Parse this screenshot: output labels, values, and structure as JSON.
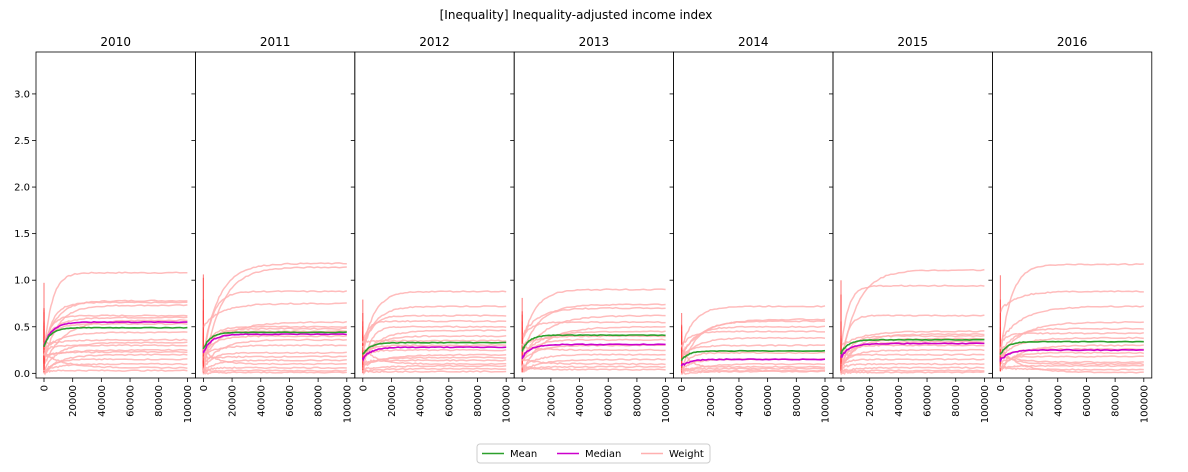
{
  "chart_data": {
    "type": "line",
    "title": "[Inequality] Inequality-adjusted income index",
    "panels": [
      {
        "name": "2010",
        "mean_final": 0.49,
        "median_final": 0.55,
        "weights_final": [
          1.08,
          0.78,
          0.76,
          0.73,
          0.62,
          0.6,
          0.57,
          0.53,
          0.44,
          0.36,
          0.33,
          0.3,
          0.25,
          0.23,
          0.2,
          0.15,
          0.1,
          0.06,
          0.03
        ]
      },
      {
        "name": "2011",
        "mean_final": 0.44,
        "median_final": 0.42,
        "weights_final": [
          1.18,
          1.14,
          0.88,
          0.75,
          0.55,
          0.5,
          0.48,
          0.45,
          0.4,
          0.36,
          0.3,
          0.22,
          0.18,
          0.14,
          0.1,
          0.06,
          0.03,
          0.01
        ]
      },
      {
        "name": "2012",
        "mean_final": 0.33,
        "median_final": 0.28,
        "weights_final": [
          0.88,
          0.72,
          0.62,
          0.56,
          0.5,
          0.46,
          0.4,
          0.35,
          0.3,
          0.25,
          0.2,
          0.17,
          0.14,
          0.1,
          0.08,
          0.05,
          0.02
        ]
      },
      {
        "name": "2013",
        "mean_final": 0.41,
        "median_final": 0.31,
        "weights_final": [
          0.9,
          0.74,
          0.7,
          0.62,
          0.55,
          0.5,
          0.45,
          0.4,
          0.36,
          0.3,
          0.25,
          0.2,
          0.15,
          0.1,
          0.07,
          0.04
        ]
      },
      {
        "name": "2014",
        "mean_final": 0.24,
        "median_final": 0.15,
        "weights_final": [
          0.72,
          0.58,
          0.56,
          0.5,
          0.45,
          0.38,
          0.3,
          0.22,
          0.15,
          0.1,
          0.07,
          0.05,
          0.03,
          0.02
        ]
      },
      {
        "name": "2015",
        "mean_final": 0.36,
        "median_final": 0.32,
        "weights_final": [
          1.11,
          0.94,
          0.62,
          0.45,
          0.42,
          0.4,
          0.37,
          0.34,
          0.3,
          0.25,
          0.2,
          0.15,
          0.1,
          0.06,
          0.03,
          0.01
        ]
      },
      {
        "name": "2016",
        "mean_final": 0.34,
        "median_final": 0.25,
        "weights_final": [
          1.17,
          0.88,
          0.72,
          0.55,
          0.48,
          0.43,
          0.38,
          0.3,
          0.26,
          0.22,
          0.18,
          0.12,
          0.1,
          0.08,
          0.04,
          0.01
        ]
      }
    ],
    "xlim": [
      0,
      100000
    ],
    "ylim": [
      -0.05,
      3.45
    ],
    "x_ticks": [
      0,
      20000,
      40000,
      60000,
      80000,
      100000
    ],
    "y_ticks": [
      0.0,
      0.5,
      1.0,
      1.5,
      2.0,
      2.5,
      3.0
    ],
    "x_tick_labels": [
      "0",
      "20000",
      "40000",
      "60000",
      "80000",
      "100000"
    ],
    "y_tick_labels": [
      "0.0",
      "0.5",
      "1.0",
      "1.5",
      "2.0",
      "2.5",
      "3.0"
    ],
    "legend": {
      "placement": "bottom-center",
      "entries": [
        {
          "label": "Mean",
          "color": "#2ca02c"
        },
        {
          "label": "Median",
          "color": "#cc00cc"
        },
        {
          "label": "Weight",
          "color": "#ffb0b0"
        }
      ]
    },
    "grid": false
  }
}
